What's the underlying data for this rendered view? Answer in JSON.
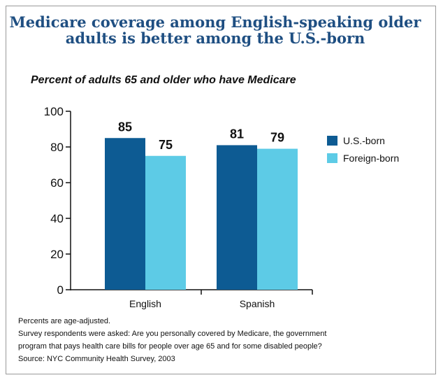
{
  "title_line1": "Medicare coverage among English-speaking older",
  "title_line2": "adults is better among the U.S.-born",
  "subtitle": "Percent of adults 65 and older who have Medicare",
  "colors": {
    "us_born": "#0d5b93",
    "foreign_born": "#5dcbe6",
    "title": "#1f4f82"
  },
  "chart_data": {
    "type": "bar",
    "categories": [
      "English",
      "Spanish"
    ],
    "series": [
      {
        "name": "U.S.-born",
        "values": [
          85,
          81
        ]
      },
      {
        "name": "Foreign-born",
        "values": [
          75,
          79
        ]
      }
    ],
    "ylim": [
      0,
      100
    ],
    "yticks": [
      0,
      20,
      40,
      60,
      80,
      100
    ],
    "legend_position": "right"
  },
  "notes": {
    "line1": "Percents are age-adjusted.",
    "line2": "Survey respondents were asked: Are you personally covered by Medicare, the government",
    "line3": "program that pays health care bills for people over age 65 and for some disabled people?",
    "line4": "Source:  NYC Community Health Survey, 2003"
  }
}
